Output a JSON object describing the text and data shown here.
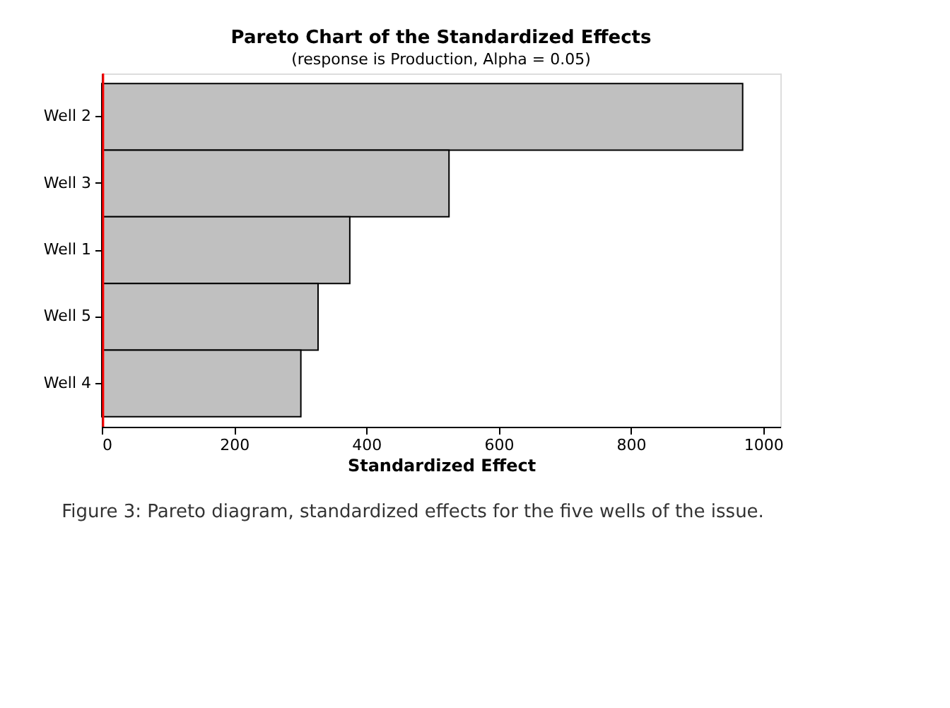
{
  "chart_data": {
    "type": "bar",
    "orientation": "horizontal",
    "title": "Pareto Chart of the Standardized Effects",
    "subtitle": "(response is Production, Alpha = 0.05)",
    "xlabel": "Standardized Effect",
    "categories": [
      "Well 2",
      "Well 3",
      "Well 1",
      "Well 5",
      "Well 4"
    ],
    "values": [
      969,
      525,
      375,
      327,
      301
    ],
    "color": "#c0c0c0",
    "xlim": [
      0,
      1026
    ],
    "xticks": [
      0,
      200,
      400,
      600,
      800,
      1000
    ],
    "ref_lines": [
      {
        "axis": "x",
        "value": 2,
        "color": "#ff0000"
      }
    ],
    "annotations": [
      "Figure 3: Pareto diagram, standardized effects for the five wells of the issue."
    ]
  }
}
